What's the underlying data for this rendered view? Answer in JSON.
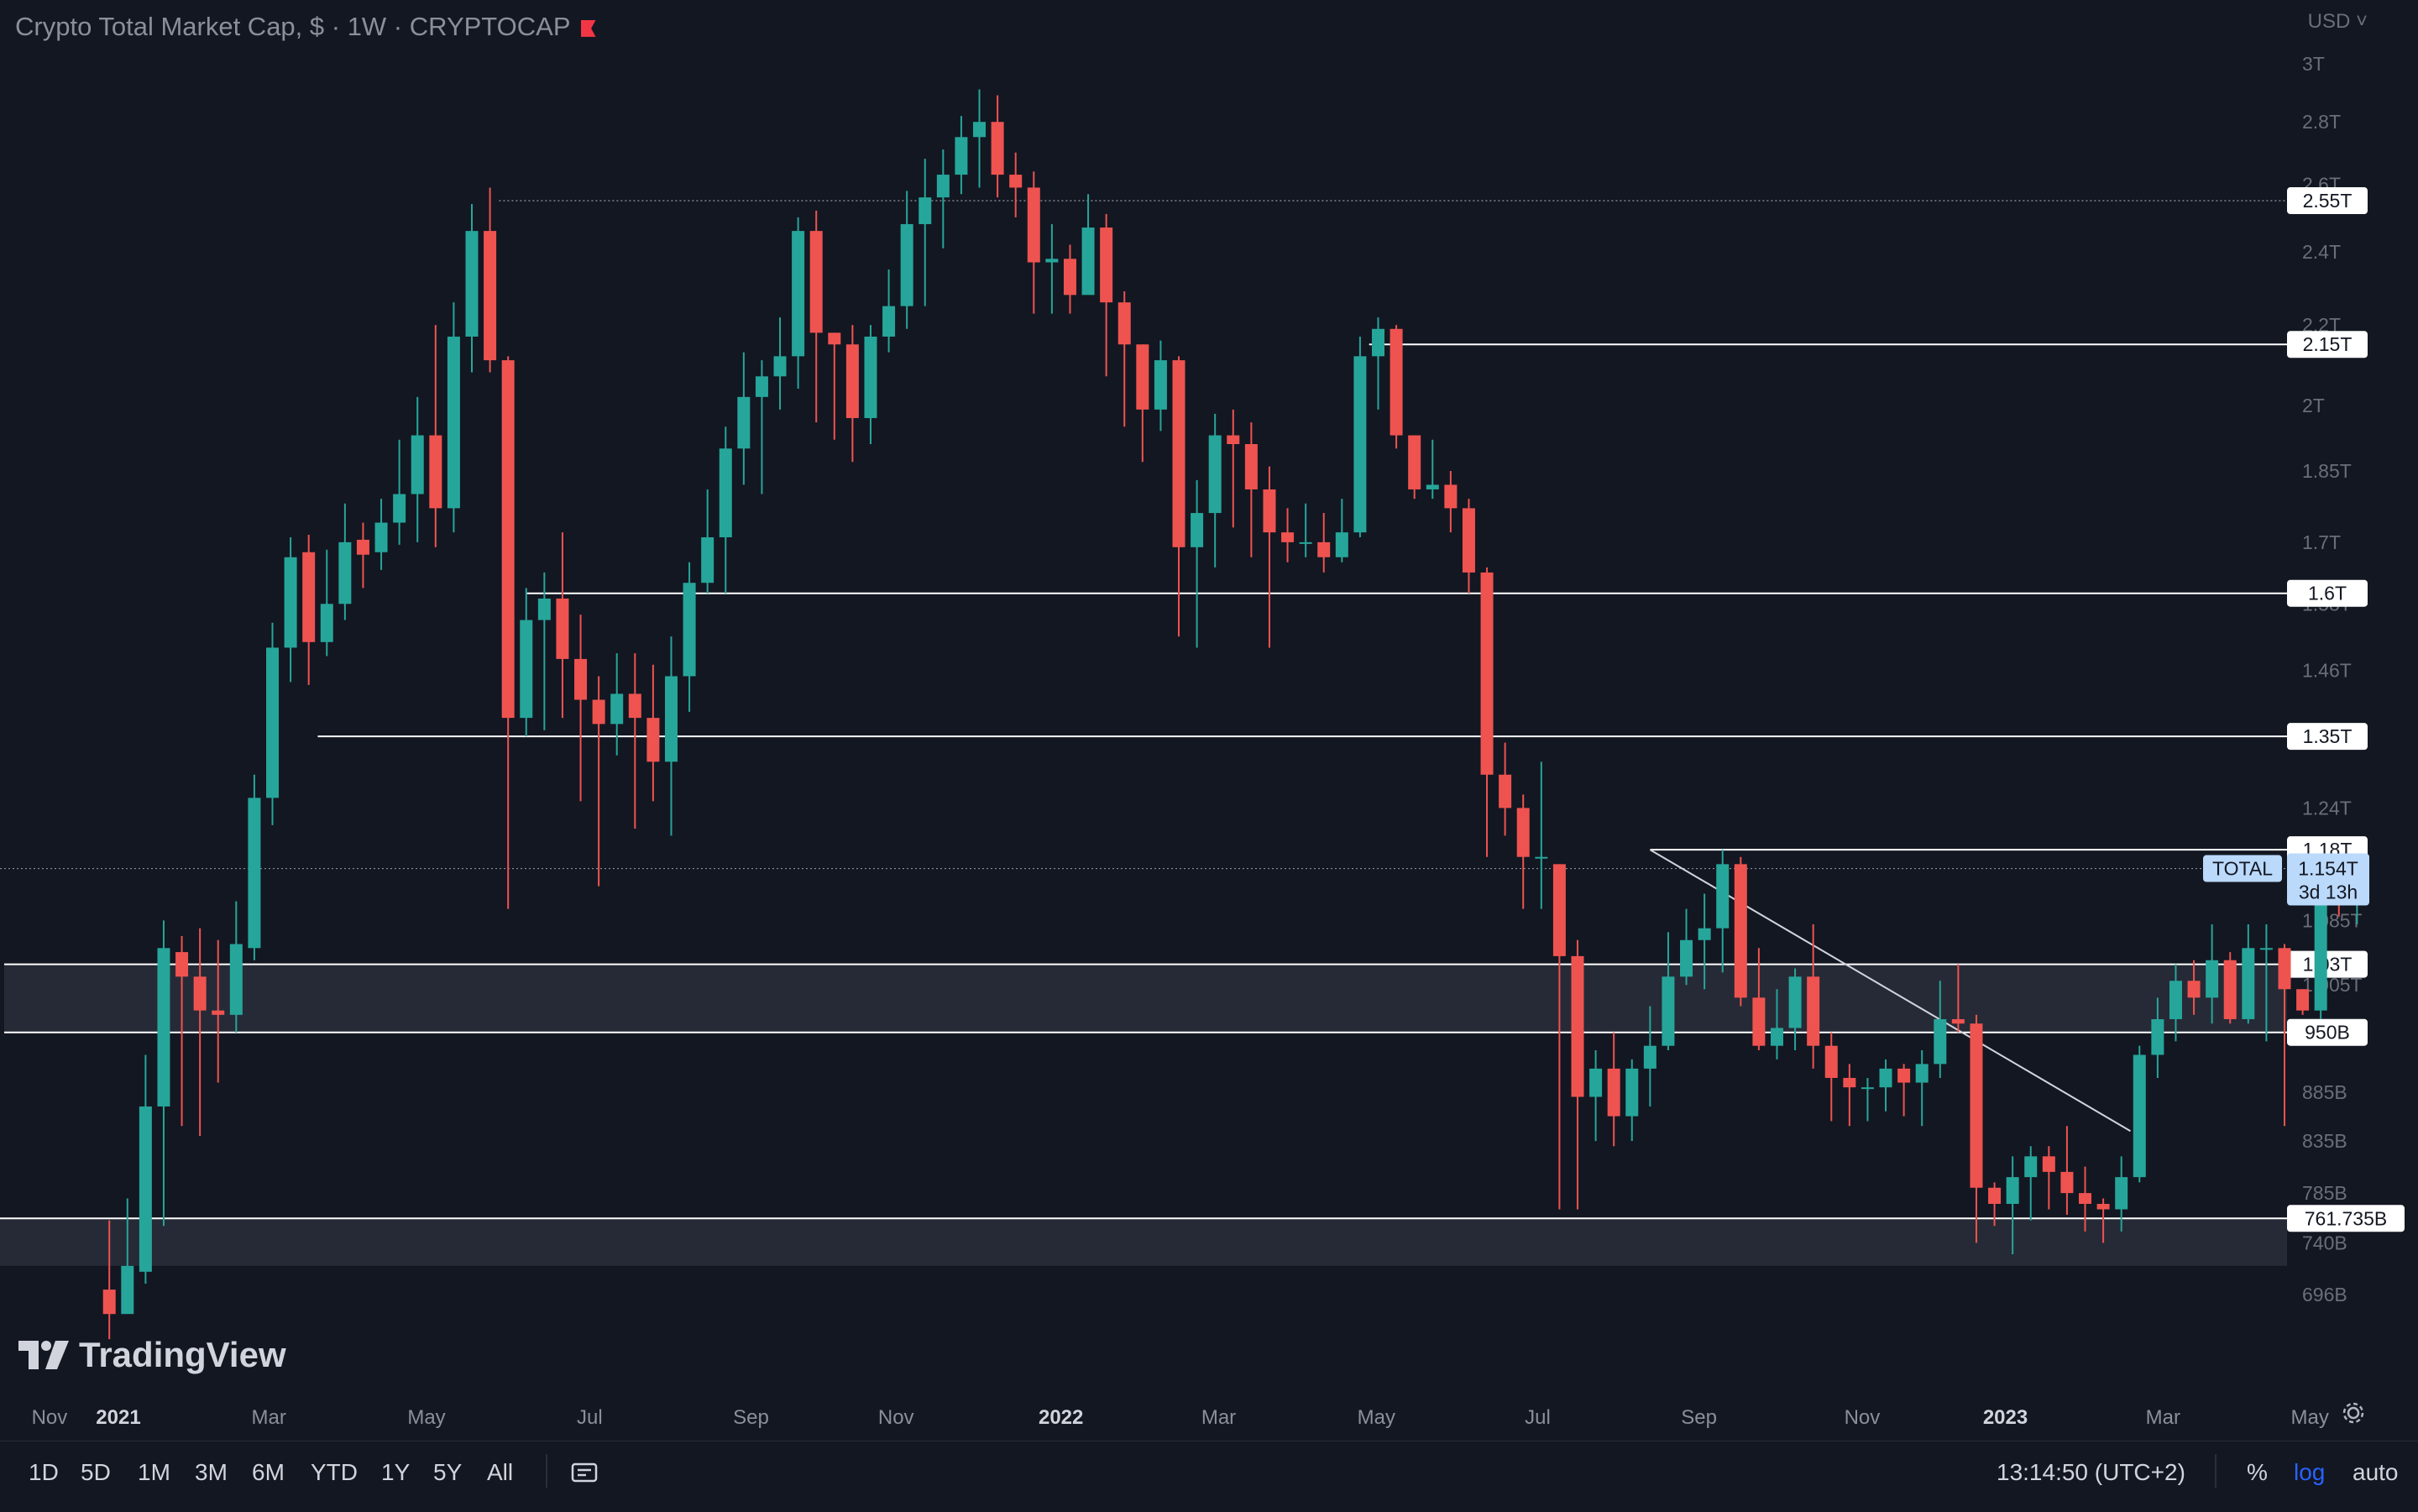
{
  "header": {
    "title": "Crypto Total Market Cap, $ · 1W · CRYPTOCAP",
    "currency": "USD"
  },
  "logo": {
    "text": "TradingView"
  },
  "colors": {
    "background": "#131722",
    "up": "#26a69a",
    "down": "#ef5350",
    "level": "#ffffff",
    "zone": "#2a2e39"
  },
  "chart_data": {
    "type": "candlestick",
    "y_scale": "log",
    "ylim": [
      650,
      3050
    ],
    "y_unit": "B USD",
    "y_ticks": [
      {
        "v": 3000,
        "label": "3T"
      },
      {
        "v": 2800,
        "label": "2.8T"
      },
      {
        "v": 2600,
        "label": "2.6T"
      },
      {
        "v": 2400,
        "label": "2.4T"
      },
      {
        "v": 2200,
        "label": "2.2T"
      },
      {
        "v": 2000,
        "label": "2T"
      },
      {
        "v": 1850,
        "label": "1.85T"
      },
      {
        "v": 1700,
        "label": "1.7T"
      },
      {
        "v": 1580,
        "label": "1.58T"
      },
      {
        "v": 1460,
        "label": "1.46T"
      },
      {
        "v": 1240,
        "label": "1.24T"
      },
      {
        "v": 1085,
        "label": "1.085T"
      },
      {
        "v": 1005,
        "label": "1.005T"
      },
      {
        "v": 885,
        "label": "885B"
      },
      {
        "v": 835,
        "label": "835B"
      },
      {
        "v": 785,
        "label": "785B"
      },
      {
        "v": 740,
        "label": "740B"
      },
      {
        "v": 696,
        "label": "696B"
      }
    ],
    "x_ticks": [
      {
        "i": -3.3,
        "label": "Nov",
        "bold": false
      },
      {
        "i": 0.5,
        "label": "2021",
        "bold": true
      },
      {
        "i": 8.8,
        "label": "Mar",
        "bold": false
      },
      {
        "i": 17.5,
        "label": "May",
        "bold": false
      },
      {
        "i": 26.5,
        "label": "Jul",
        "bold": false
      },
      {
        "i": 35.4,
        "label": "Sep",
        "bold": false
      },
      {
        "i": 43.4,
        "label": "Nov",
        "bold": false
      },
      {
        "i": 52.5,
        "label": "2022",
        "bold": true
      },
      {
        "i": 61.2,
        "label": "Mar",
        "bold": false
      },
      {
        "i": 69.9,
        "label": "May",
        "bold": false
      },
      {
        "i": 78.8,
        "label": "Jul",
        "bold": false
      },
      {
        "i": 87.7,
        "label": "Sep",
        "bold": false
      },
      {
        "i": 96.7,
        "label": "Nov",
        "bold": false
      },
      {
        "i": 104.6,
        "label": "2023",
        "bold": true
      },
      {
        "i": 113.3,
        "label": "Mar",
        "bold": false
      },
      {
        "i": 121.4,
        "label": "May",
        "bold": false
      }
    ],
    "candles": [
      [
        700,
        680,
        760,
        660
      ],
      [
        680,
        720,
        780,
        690
      ],
      [
        715,
        870,
        925,
        705
      ],
      [
        870,
        1050,
        1085,
        755
      ],
      [
        1045,
        1015,
        1065,
        850
      ],
      [
        1015,
        975,
        1075,
        840
      ],
      [
        975,
        970,
        1060,
        895
      ],
      [
        970,
        1055,
        1110,
        950
      ],
      [
        1050,
        1255,
        1290,
        1035
      ],
      [
        1255,
        1500,
        1545,
        1215
      ],
      [
        1500,
        1670,
        1710,
        1440
      ],
      [
        1680,
        1510,
        1715,
        1435
      ],
      [
        1510,
        1580,
        1685,
        1485
      ],
      [
        1580,
        1700,
        1780,
        1550
      ],
      [
        1705,
        1675,
        1740,
        1610
      ],
      [
        1680,
        1740,
        1790,
        1645
      ],
      [
        1740,
        1800,
        1920,
        1695
      ],
      [
        1800,
        1930,
        2020,
        1700
      ],
      [
        1930,
        1770,
        2200,
        1690
      ],
      [
        1770,
        2170,
        2260,
        1720
      ],
      [
        2170,
        2460,
        2540,
        2080
      ],
      [
        2460,
        2110,
        2590,
        2080
      ],
      [
        2110,
        1380,
        2120,
        1100
      ],
      [
        1380,
        1550,
        1610,
        1350
      ],
      [
        1550,
        1590,
        1640,
        1360
      ],
      [
        1590,
        1480,
        1720,
        1380
      ],
      [
        1480,
        1410,
        1560,
        1250
      ],
      [
        1410,
        1370,
        1450,
        1130
      ],
      [
        1370,
        1420,
        1490,
        1320
      ],
      [
        1420,
        1380,
        1490,
        1210
      ],
      [
        1380,
        1310,
        1470,
        1250
      ],
      [
        1310,
        1450,
        1520,
        1200
      ],
      [
        1450,
        1620,
        1660,
        1390
      ],
      [
        1620,
        1710,
        1810,
        1600
      ],
      [
        1710,
        1900,
        1950,
        1600
      ],
      [
        1900,
        2020,
        2130,
        1820
      ],
      [
        2020,
        2070,
        2110,
        1800
      ],
      [
        2070,
        2120,
        2220,
        1990
      ],
      [
        2120,
        2460,
        2500,
        2040
      ],
      [
        2460,
        2180,
        2520,
        1960
      ],
      [
        2180,
        2150,
        2180,
        1920
      ],
      [
        2150,
        1970,
        2200,
        1870
      ],
      [
        1970,
        2170,
        2200,
        1910
      ],
      [
        2170,
        2250,
        2350,
        2130
      ],
      [
        2250,
        2480,
        2580,
        2190
      ],
      [
        2480,
        2560,
        2680,
        2250
      ],
      [
        2560,
        2630,
        2710,
        2410
      ],
      [
        2630,
        2750,
        2820,
        2570
      ],
      [
        2750,
        2800,
        2910,
        2590
      ],
      [
        2800,
        2630,
        2890,
        2560
      ],
      [
        2630,
        2590,
        2700,
        2500
      ],
      [
        2590,
        2370,
        2640,
        2230
      ],
      [
        2370,
        2380,
        2480,
        2230
      ],
      [
        2380,
        2280,
        2420,
        2230
      ],
      [
        2280,
        2470,
        2570,
        2290
      ],
      [
        2470,
        2260,
        2510,
        2070
      ],
      [
        2260,
        2150,
        2290,
        1950
      ],
      [
        2150,
        1990,
        2150,
        1870
      ],
      [
        1990,
        2110,
        2160,
        1940
      ],
      [
        2110,
        1690,
        2120,
        1520
      ],
      [
        1690,
        1760,
        1830,
        1500
      ],
      [
        1760,
        1930,
        1980,
        1650
      ],
      [
        1930,
        1910,
        1990,
        1730
      ],
      [
        1910,
        1810,
        1960,
        1670
      ],
      [
        1810,
        1720,
        1860,
        1500
      ],
      [
        1720,
        1700,
        1770,
        1660
      ],
      [
        1700,
        1700,
        1780,
        1670
      ],
      [
        1700,
        1670,
        1760,
        1640
      ],
      [
        1670,
        1720,
        1790,
        1660
      ],
      [
        1720,
        2120,
        2170,
        1710
      ],
      [
        2120,
        2190,
        2220,
        1990
      ],
      [
        2190,
        1930,
        2200,
        1900
      ],
      [
        1930,
        1810,
        1930,
        1790
      ],
      [
        1810,
        1820,
        1920,
        1790
      ],
      [
        1820,
        1770,
        1850,
        1720
      ],
      [
        1770,
        1640,
        1790,
        1600
      ],
      [
        1640,
        1290,
        1650,
        1170
      ],
      [
        1290,
        1240,
        1340,
        1200
      ],
      [
        1240,
        1170,
        1260,
        1100
      ],
      [
        1170,
        1170,
        1310,
        1100
      ],
      [
        1160,
        1040,
        1160,
        770
      ],
      [
        1040,
        880,
        1060,
        770
      ],
      [
        880,
        910,
        930,
        835
      ],
      [
        910,
        860,
        950,
        830
      ],
      [
        860,
        910,
        920,
        835
      ],
      [
        910,
        935,
        980,
        870
      ],
      [
        935,
        1015,
        1070,
        930
      ],
      [
        1015,
        1060,
        1100,
        1005
      ],
      [
        1060,
        1075,
        1120,
        1000
      ],
      [
        1075,
        1160,
        1180,
        1020
      ],
      [
        1160,
        990,
        1170,
        980
      ],
      [
        990,
        935,
        1050,
        930
      ],
      [
        935,
        955,
        1000,
        920
      ],
      [
        955,
        1015,
        1025,
        930
      ],
      [
        1015,
        935,
        1080,
        910
      ],
      [
        935,
        900,
        950,
        855
      ],
      [
        900,
        890,
        915,
        850
      ],
      [
        890,
        890,
        900,
        855
      ],
      [
        890,
        910,
        920,
        865
      ],
      [
        910,
        895,
        915,
        860
      ],
      [
        895,
        915,
        930,
        850
      ],
      [
        915,
        965,
        1010,
        900
      ],
      [
        965,
        960,
        1030,
        950
      ],
      [
        960,
        790,
        970,
        740
      ],
      [
        790,
        775,
        795,
        755
      ],
      [
        775,
        800,
        820,
        730
      ],
      [
        800,
        820,
        830,
        760
      ],
      [
        820,
        805,
        830,
        770
      ],
      [
        805,
        785,
        850,
        765
      ],
      [
        785,
        775,
        810,
        750
      ],
      [
        775,
        770,
        780,
        740
      ],
      [
        770,
        800,
        820,
        750
      ],
      [
        800,
        925,
        935,
        795
      ],
      [
        925,
        965,
        990,
        900
      ],
      [
        965,
        1010,
        1030,
        940
      ],
      [
        1010,
        990,
        1035,
        970
      ],
      [
        990,
        1035,
        1080,
        960
      ],
      [
        1035,
        965,
        1045,
        960
      ],
      [
        965,
        1050,
        1080,
        960
      ],
      [
        1050,
        1050,
        1080,
        940
      ],
      [
        1050,
        1000,
        1055,
        850
      ],
      [
        1000,
        975,
        1000,
        970
      ],
      [
        975,
        1145,
        1150,
        965
      ],
      [
        1145,
        1140,
        1170,
        1090
      ],
      [
        1140,
        1155,
        1165,
        1080
      ]
    ],
    "levels": [
      {
        "v": 2550,
        "from": 21.5,
        "style": "dotted",
        "label": "2.55T"
      },
      {
        "v": 2150,
        "from": 69.5,
        "style": "solid",
        "label": "2.15T"
      },
      {
        "v": 1600,
        "from": 23,
        "style": "solid",
        "label": "1.6T"
      },
      {
        "v": 1350,
        "from": 11.5,
        "style": "solid",
        "label": "1.35T"
      },
      {
        "v": 1180,
        "from": 85,
        "style": "solid",
        "label": "1.18T"
      },
      {
        "v": 1030,
        "from": -5.8,
        "style": "solid",
        "label": "1.03T"
      },
      {
        "v": 950,
        "from": -5.8,
        "style": "solid",
        "label": "950B"
      },
      {
        "v": 761.735,
        "from": -14,
        "style": "solid",
        "label": "761.735B"
      }
    ],
    "zones": [
      {
        "from_v": 950,
        "to_v": 1030,
        "from": -5.8
      },
      {
        "from_v": 720,
        "to_v": 761.735,
        "from": -14
      }
    ],
    "trendline": {
      "i1": 85,
      "v1": 1180,
      "i2": 111.5,
      "v2": 845
    },
    "last_price": {
      "v": 1154,
      "label": "1.154T",
      "countdown": "3d 13h",
      "symbol": "TOTAL"
    }
  },
  "bottombar": {
    "timeframes": [
      "1D",
      "5D",
      "1M",
      "3M",
      "6M",
      "YTD",
      "1Y",
      "5Y",
      "All"
    ],
    "clock": "13:14:50 (UTC+2)",
    "percent": "%",
    "log": "log",
    "auto": "auto"
  }
}
